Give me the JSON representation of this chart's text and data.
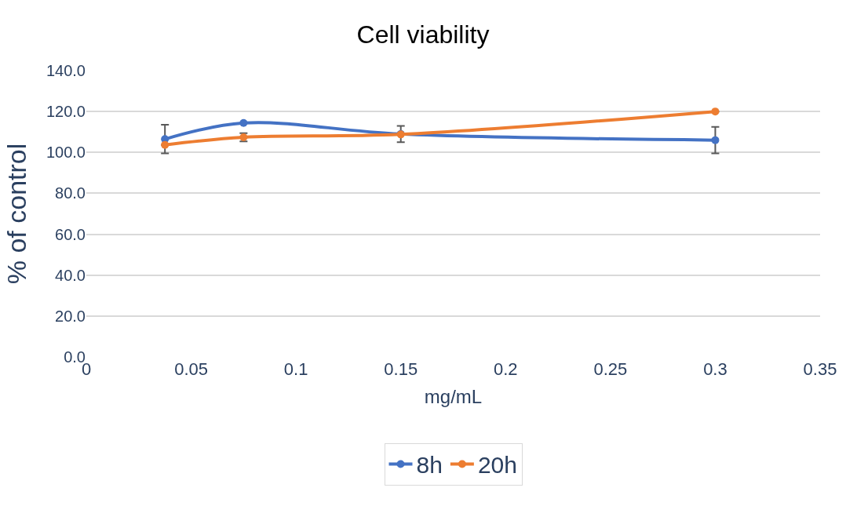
{
  "chart_data": {
    "type": "line",
    "title": "Cell viability",
    "xlabel": "mg/mL",
    "ylabel": "% of control",
    "x": [
      0.0375,
      0.075,
      0.15,
      0.3
    ],
    "series": [
      {
        "name": "8h",
        "color": "#4472c4",
        "values": [
          106.5,
          114.4,
          109.0,
          106.0
        ],
        "errors": [
          7,
          null,
          4,
          6.5
        ]
      },
      {
        "name": "20h",
        "color": "#ed7d31",
        "values": [
          103.7,
          107.4,
          108.8,
          120.0
        ],
        "errors": [
          null,
          2,
          null,
          null
        ]
      }
    ],
    "xlim": [
      0,
      0.35
    ],
    "xticks": [
      0,
      0.05,
      0.1,
      0.15,
      0.2,
      0.25,
      0.3,
      0.35
    ],
    "ylim": [
      0,
      140
    ],
    "yticks": [
      {
        "value": 0,
        "label": "0.0"
      },
      {
        "value": 20,
        "label": "20.0"
      },
      {
        "value": 40,
        "label": "40.0"
      },
      {
        "value": 60,
        "label": "60.0"
      },
      {
        "value": 80,
        "label": "80.0"
      },
      {
        "value": 100,
        "label": "100.0"
      },
      {
        "value": 120,
        "label": "120.0"
      },
      {
        "value": 140,
        "label": "140.0"
      }
    ],
    "grid": "y",
    "legend": "bottom",
    "marker": "circle",
    "line_style": "solid"
  }
}
